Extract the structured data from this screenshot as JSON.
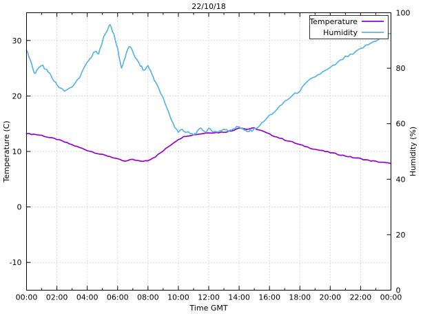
{
  "title": "22/10/18",
  "chart_data": {
    "type": "line",
    "title": "22/10/18",
    "xlabel": "Time GMT",
    "ylabel": "Temperature (C)",
    "y2label": "Humidity (%)",
    "x_unit": "hours_gmt",
    "xlim": [
      0,
      24
    ],
    "ylim_left": [
      -15,
      35
    ],
    "ylim_right": [
      0,
      100
    ],
    "grid": true,
    "legend_position": "top-right-inside",
    "x_major_ticks_hours": [
      0,
      2,
      4,
      6,
      8,
      10,
      12,
      14,
      16,
      18,
      20,
      22,
      24
    ],
    "x_tick_labels": [
      "00:00",
      "02:00",
      "04:00",
      "06:00",
      "08:00",
      "10:00",
      "12:00",
      "14:00",
      "16:00",
      "18:00",
      "20:00",
      "22:00",
      "00:00"
    ],
    "y_left_ticks": [
      -10,
      0,
      10,
      20,
      30
    ],
    "y_right_ticks": [
      0,
      20,
      40,
      60,
      80,
      100
    ],
    "grid_color": "#b5b5b5",
    "axis_color": "#000000",
    "series": [
      {
        "name": "Temperature",
        "axis": "left",
        "unit": "C",
        "color": "#9400d3",
        "points": [
          [
            0,
            13.2
          ],
          [
            0.5,
            13.1
          ],
          [
            1,
            12.9
          ],
          [
            1.5,
            12.5
          ],
          [
            2,
            12.2
          ],
          [
            2.5,
            11.7
          ],
          [
            3,
            11.2
          ],
          [
            3.5,
            10.7
          ],
          [
            4,
            10.2
          ],
          [
            4.5,
            9.8
          ],
          [
            5,
            9.4
          ],
          [
            5.5,
            9.1
          ],
          [
            6,
            8.6
          ],
          [
            6.5,
            8.2
          ],
          [
            7,
            8.6
          ],
          [
            7.5,
            8.2
          ],
          [
            8,
            8.4
          ],
          [
            8.5,
            9.1
          ],
          [
            9,
            10.1
          ],
          [
            9.5,
            11.2
          ],
          [
            10,
            12.2
          ],
          [
            10.5,
            12.8
          ],
          [
            11,
            13.0
          ],
          [
            11.5,
            13.2
          ],
          [
            12,
            13.4
          ],
          [
            12.5,
            13.4
          ],
          [
            13,
            13.5
          ],
          [
            13.5,
            13.7
          ],
          [
            14,
            14.3
          ],
          [
            14.5,
            14.0
          ],
          [
            15,
            14.2
          ],
          [
            15.5,
            13.7
          ],
          [
            16,
            13.1
          ],
          [
            16.5,
            12.6
          ],
          [
            17,
            12.1
          ],
          [
            17.5,
            11.7
          ],
          [
            18,
            11.2
          ],
          [
            18.5,
            10.8
          ],
          [
            19,
            10.4
          ],
          [
            19.5,
            10.1
          ],
          [
            20,
            9.8
          ],
          [
            20.5,
            9.5
          ],
          [
            21,
            9.2
          ],
          [
            21.5,
            8.9
          ],
          [
            22,
            8.7
          ],
          [
            22.5,
            8.4
          ],
          [
            23,
            8.2
          ],
          [
            23.5,
            8.0
          ],
          [
            24,
            7.8
          ]
        ]
      },
      {
        "name": "Humidity",
        "axis": "right",
        "unit": "%",
        "color": "#56b4e9",
        "points": [
          [
            0,
            86.5
          ],
          [
            0.25,
            83
          ],
          [
            0.5,
            78
          ],
          [
            0.75,
            79.5
          ],
          [
            1,
            81
          ],
          [
            1.25,
            80
          ],
          [
            1.5,
            78
          ],
          [
            1.75,
            76
          ],
          [
            2,
            74
          ],
          [
            2.5,
            72
          ],
          [
            3,
            73
          ],
          [
            3.5,
            77
          ],
          [
            4,
            82
          ],
          [
            4.25,
            84
          ],
          [
            4.5,
            86
          ],
          [
            4.75,
            85
          ],
          [
            5,
            90
          ],
          [
            5.25,
            93
          ],
          [
            5.5,
            96
          ],
          [
            5.75,
            92
          ],
          [
            6,
            87
          ],
          [
            6.25,
            80
          ],
          [
            6.5,
            84
          ],
          [
            6.75,
            88
          ],
          [
            7,
            86
          ],
          [
            7.25,
            83
          ],
          [
            7.5,
            81
          ],
          [
            7.75,
            79
          ],
          [
            8,
            81
          ],
          [
            8.25,
            78
          ],
          [
            8.5,
            75
          ],
          [
            9,
            69
          ],
          [
            9.5,
            62
          ],
          [
            9.75,
            59
          ],
          [
            10,
            57
          ],
          [
            10.25,
            58
          ],
          [
            10.5,
            57
          ],
          [
            10.75,
            56.5
          ],
          [
            11,
            56
          ],
          [
            11.25,
            57
          ],
          [
            11.5,
            58.5
          ],
          [
            11.75,
            57
          ],
          [
            12,
            58
          ],
          [
            12.25,
            57.5
          ],
          [
            12.5,
            57
          ],
          [
            12.75,
            57.5
          ],
          [
            13,
            58
          ],
          [
            13.25,
            57.5
          ],
          [
            13.5,
            58
          ],
          [
            13.75,
            58.5
          ],
          [
            14,
            59
          ],
          [
            14.25,
            58
          ],
          [
            14.5,
            57
          ],
          [
            14.75,
            57.5
          ],
          [
            15,
            58
          ],
          [
            15.5,
            60
          ],
          [
            16,
            63
          ],
          [
            16.5,
            65
          ],
          [
            17,
            68
          ],
          [
            17.5,
            70
          ],
          [
            18,
            72
          ],
          [
            18.5,
            75
          ],
          [
            19,
            77
          ],
          [
            19.5,
            78.5
          ],
          [
            20,
            80
          ],
          [
            20.5,
            82
          ],
          [
            21,
            84
          ],
          [
            21.5,
            85
          ],
          [
            22,
            87
          ],
          [
            22.5,
            88.5
          ],
          [
            23,
            90
          ],
          [
            23.5,
            91.5
          ],
          [
            24,
            92.5
          ]
        ]
      }
    ]
  }
}
